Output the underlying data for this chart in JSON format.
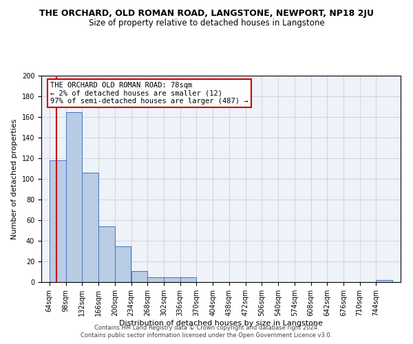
{
  "title": "THE ORCHARD, OLD ROMAN ROAD, LANGSTONE, NEWPORT, NP18 2JU",
  "subtitle": "Size of property relative to detached houses in Langstone",
  "xlabel": "Distribution of detached houses by size in Langstone",
  "ylabel": "Number of detached properties",
  "bins": [
    "64sqm",
    "98sqm",
    "132sqm",
    "166sqm",
    "200sqm",
    "234sqm",
    "268sqm",
    "302sqm",
    "336sqm",
    "370sqm",
    "404sqm",
    "438sqm",
    "472sqm",
    "506sqm",
    "540sqm",
    "574sqm",
    "608sqm",
    "642sqm",
    "676sqm",
    "710sqm",
    "744sqm"
  ],
  "bar_heights": [
    118,
    165,
    106,
    54,
    35,
    11,
    5,
    5,
    5,
    0,
    0,
    0,
    0,
    0,
    0,
    0,
    0,
    0,
    0,
    0,
    2
  ],
  "bar_color": "#b8cce4",
  "bar_edge_color": "#4472c4",
  "subject_line_color": "#cc0000",
  "annotation_title": "THE ORCHARD OLD ROMAN ROAD: 78sqm",
  "annotation_line1": "← 2% of detached houses are smaller (12)",
  "annotation_line2": "97% of semi-detached houses are larger (487) →",
  "annotation_box_edge_color": "#cc0000",
  "ylim": [
    0,
    200
  ],
  "yticks": [
    0,
    20,
    40,
    60,
    80,
    100,
    120,
    140,
    160,
    180,
    200
  ],
  "footer1": "Contains HM Land Registry data © Crown copyright and database right 2024.",
  "footer2": "Contains public sector information licensed under the Open Government Licence v3.0.",
  "bg_color": "#eef2f9",
  "grid_color": "#c8c8c8",
  "title_fontsize": 9,
  "subtitle_fontsize": 8.5,
  "axis_label_fontsize": 8,
  "tick_fontsize": 7,
  "annotation_fontsize": 7.5,
  "footer_fontsize": 6
}
